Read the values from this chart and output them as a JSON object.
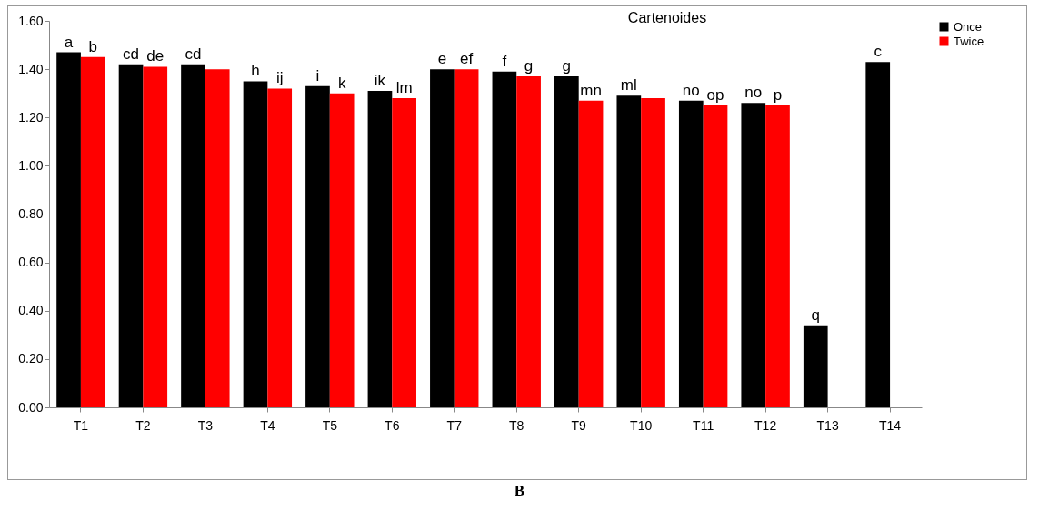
{
  "chart_data": {
    "type": "bar",
    "title": "Cartenoides",
    "categories": [
      "T1",
      "T2",
      "T3",
      "T4",
      "T5",
      "T6",
      "T7",
      "T8",
      "T9",
      "T10",
      "T11",
      "T12",
      "T13",
      "T14"
    ],
    "series": [
      {
        "name": "Once",
        "color": "#000000",
        "values": [
          1.47,
          1.42,
          1.42,
          1.35,
          1.33,
          1.31,
          1.4,
          1.39,
          1.37,
          1.29,
          1.27,
          1.26,
          0.34,
          1.43
        ],
        "value_labels": [
          "a",
          "cd",
          "cd",
          "h",
          "i",
          "ik",
          "e",
          "f",
          "g",
          "ml",
          "no",
          "no",
          "q",
          "c"
        ]
      },
      {
        "name": "Twice",
        "color": "#ff0000",
        "values": [
          1.45,
          1.41,
          1.4,
          1.32,
          1.3,
          1.28,
          1.4,
          1.37,
          1.27,
          1.28,
          1.25,
          1.25,
          null,
          null
        ],
        "value_labels": [
          "b",
          "de",
          null,
          "ij",
          "k",
          "lm",
          "ef",
          "g",
          "mn",
          null,
          "op",
          "p",
          null,
          null
        ]
      }
    ],
    "ylim": [
      0,
      1.6
    ],
    "yticks": [
      {
        "value": 0,
        "label": "0.00"
      },
      {
        "value": 0.2,
        "label": "0.20"
      },
      {
        "value": 0.4,
        "label": "0.40"
      },
      {
        "value": 0.6,
        "label": "0.60"
      },
      {
        "value": 0.8,
        "label": "0.80"
      },
      {
        "value": 1.0,
        "label": "1.00"
      },
      {
        "value": 1.2,
        "label": "1.20"
      },
      {
        "value": 1.4,
        "label": "1.40"
      },
      {
        "value": 1.6,
        "label": "1.60"
      }
    ],
    "legend": "right",
    "grid": false,
    "annotations": [
      "B"
    ]
  }
}
